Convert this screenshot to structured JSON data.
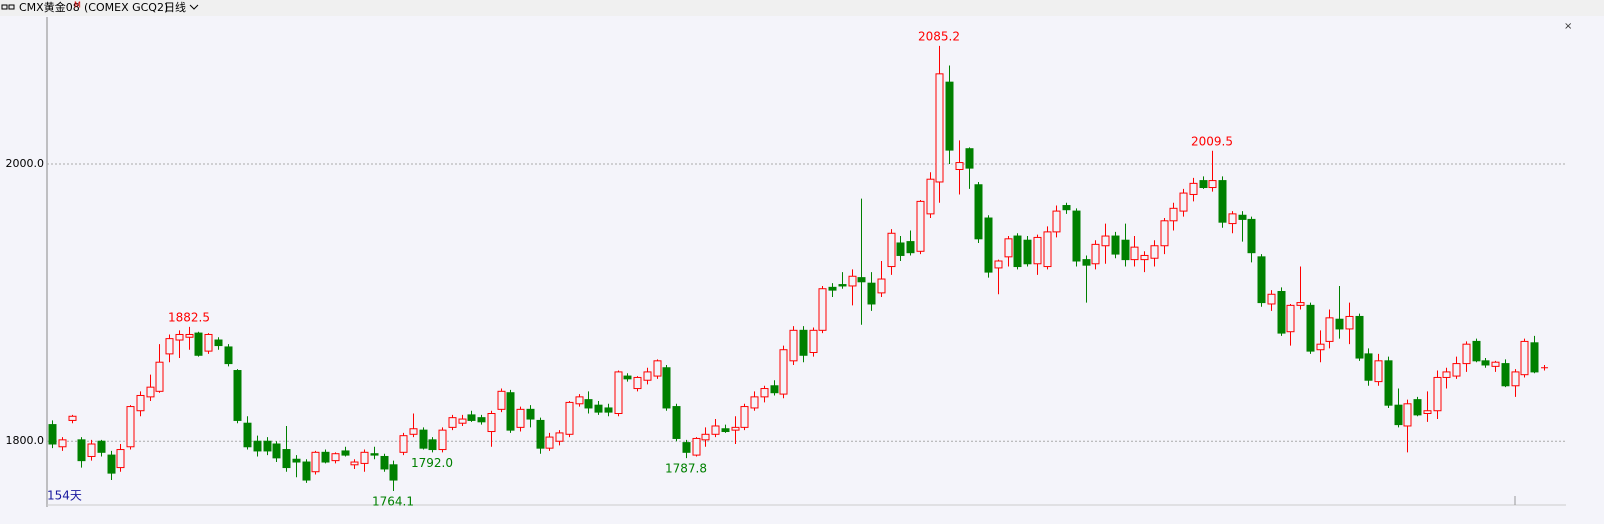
{
  "header": {
    "symbol": "CMX黄金08",
    "superscript": "M",
    "code": "(COMEX GCQ2)",
    "period": "日线"
  },
  "chart_data": {
    "type": "candlestick",
    "ylim": [
      1754,
      2106
    ],
    "yticks": [
      {
        "value": 1800,
        "label": "1800.0"
      },
      {
        "value": 2000,
        "label": "2000.0"
      }
    ],
    "grid": true,
    "up_color": "#ff0000",
    "down_color": "#008000",
    "day_count": "154天",
    "annotations": [
      {
        "value": 1882.5,
        "label": "1882.5"
      },
      {
        "value": 2085.2,
        "label": "2085.2"
      },
      {
        "value": 2009.5,
        "label": "2009.5"
      },
      {
        "value": 1764.1,
        "label": "1764.1"
      },
      {
        "value": 1787.8,
        "label": "1787.8"
      },
      {
        "value": 1792,
        "label": "1792.0"
      }
    ],
    "candles": [
      [
        1812,
        1815,
        1795,
        1798
      ],
      [
        1796,
        1803,
        1793,
        1801
      ],
      [
        1815,
        1819,
        1813,
        1818
      ],
      [
        1801,
        1803,
        1781,
        1786
      ],
      [
        1789,
        1801,
        1786,
        1798
      ],
      [
        1800,
        1801,
        1789,
        1792
      ],
      [
        1790,
        1793,
        1772,
        1777
      ],
      [
        1781,
        1798,
        1778,
        1794
      ],
      [
        1796,
        1826,
        1794,
        1825
      ],
      [
        1822,
        1836,
        1818,
        1833
      ],
      [
        1832,
        1848,
        1829,
        1839
      ],
      [
        1836,
        1870,
        1835,
        1857
      ],
      [
        1863,
        1877,
        1857,
        1874
      ],
      [
        1873,
        1880,
        1860,
        1877
      ],
      [
        1875,
        1882.5,
        1866,
        1877
      ],
      [
        1878,
        1879,
        1861,
        1862
      ],
      [
        1865,
        1878,
        1863,
        1877
      ],
      [
        1873,
        1875,
        1866,
        1869
      ],
      [
        1868,
        1870,
        1854,
        1856
      ],
      [
        1851,
        1852,
        1813,
        1815
      ],
      [
        1813,
        1818,
        1794,
        1796
      ],
      [
        1800,
        1804,
        1789,
        1793
      ],
      [
        1800,
        1803,
        1790,
        1793
      ],
      [
        1798,
        1800,
        1785,
        1788
      ],
      [
        1794,
        1811,
        1778,
        1781
      ],
      [
        1787,
        1790,
        1774,
        1785
      ],
      [
        1785,
        1787,
        1770,
        1772
      ],
      [
        1778,
        1793,
        1776,
        1792
      ],
      [
        1792,
        1794,
        1784,
        1785
      ],
      [
        1786,
        1792,
        1784,
        1791
      ],
      [
        1793,
        1796,
        1789,
        1790
      ],
      [
        1783,
        1787,
        1780,
        1785
      ],
      [
        1784,
        1794,
        1778,
        1792
      ],
      [
        1791,
        1796,
        1787,
        1790
      ],
      [
        1789,
        1791,
        1778,
        1780
      ],
      [
        1783,
        1786,
        1764.1,
        1772
      ],
      [
        1792,
        1806,
        1790,
        1804
      ],
      [
        1805,
        1820,
        1803,
        1809
      ],
      [
        1808,
        1810,
        1794,
        1795
      ],
      [
        1801,
        1803,
        1792,
        1794
      ],
      [
        1794,
        1810,
        1792,
        1808
      ],
      [
        1810,
        1819,
        1808,
        1817
      ],
      [
        1813,
        1819,
        1811,
        1816
      ],
      [
        1819,
        1822,
        1814,
        1815
      ],
      [
        1817,
        1819,
        1812,
        1814
      ],
      [
        1807,
        1822,
        1796,
        1820
      ],
      [
        1823,
        1838,
        1821,
        1836
      ],
      [
        1835,
        1837,
        1806,
        1808
      ],
      [
        1810,
        1825,
        1807,
        1823
      ],
      [
        1823,
        1826,
        1810,
        1816
      ],
      [
        1815,
        1817,
        1791,
        1795
      ],
      [
        1795,
        1806,
        1793,
        1803
      ],
      [
        1800,
        1808,
        1797,
        1806
      ],
      [
        1805,
        1829,
        1803,
        1828
      ],
      [
        1827,
        1834,
        1825,
        1832
      ],
      [
        1830,
        1836,
        1820,
        1824
      ],
      [
        1826,
        1829,
        1819,
        1821
      ],
      [
        1824,
        1827,
        1818,
        1821
      ],
      [
        1820,
        1851,
        1818,
        1850
      ],
      [
        1847,
        1849,
        1843,
        1845
      ],
      [
        1838,
        1847,
        1836,
        1846
      ],
      [
        1844,
        1853,
        1841,
        1850
      ],
      [
        1847,
        1859,
        1845,
        1858
      ],
      [
        1853,
        1855,
        1822,
        1824
      ],
      [
        1825,
        1827,
        1800,
        1802
      ],
      [
        1799,
        1801,
        1787.8,
        1792
      ],
      [
        1790,
        1803,
        1789,
        1802
      ],
      [
        1801,
        1810,
        1796,
        1805
      ],
      [
        1805,
        1816,
        1803,
        1811
      ],
      [
        1809,
        1812,
        1806,
        1807
      ],
      [
        1808,
        1818,
        1798,
        1810
      ],
      [
        1810,
        1827,
        1808,
        1825
      ],
      [
        1824,
        1836,
        1822,
        1832
      ],
      [
        1832,
        1840,
        1828,
        1838
      ],
      [
        1840,
        1844,
        1833,
        1835
      ],
      [
        1834,
        1869,
        1831,
        1866
      ],
      [
        1858,
        1883,
        1855,
        1880
      ],
      [
        1880,
        1883,
        1857,
        1862
      ],
      [
        1864,
        1882,
        1861,
        1880
      ],
      [
        1880,
        1912,
        1878,
        1910
      ],
      [
        1911,
        1914,
        1904,
        1909
      ],
      [
        1913,
        1922,
        1910,
        1912
      ],
      [
        1912,
        1924,
        1898,
        1919
      ],
      [
        1918,
        1975,
        1884,
        1915
      ],
      [
        1914,
        1922,
        1894,
        1899
      ],
      [
        1907,
        1930,
        1904,
        1917
      ],
      [
        1926,
        1953,
        1920,
        1950
      ],
      [
        1943,
        1948,
        1930,
        1934
      ],
      [
        1944,
        1952,
        1934,
        1936
      ],
      [
        1937,
        1974,
        1935,
        1973
      ],
      [
        1964,
        1994,
        1961,
        1989
      ],
      [
        1987,
        2085.2,
        1972,
        2065
      ],
      [
        2059,
        2071,
        2000,
        2010
      ],
      [
        1996,
        2017,
        1978,
        2001
      ],
      [
        2011,
        2012,
        1982,
        1997
      ],
      [
        1985,
        1987,
        1943,
        1946
      ],
      [
        1961,
        1963,
        1918,
        1922
      ],
      [
        1925,
        1931,
        1906,
        1930
      ],
      [
        1933,
        1948,
        1926,
        1946
      ],
      [
        1948,
        1950,
        1924,
        1926
      ],
      [
        1945,
        1948,
        1926,
        1928
      ],
      [
        1928,
        1949,
        1920,
        1947
      ],
      [
        1926,
        1955,
        1924,
        1951
      ],
      [
        1951,
        1970,
        1947,
        1966
      ],
      [
        1970,
        1972,
        1964,
        1967
      ],
      [
        1966,
        1968,
        1926,
        1930
      ],
      [
        1931,
        1934,
        1900,
        1927
      ],
      [
        1928,
        1945,
        1924,
        1942
      ],
      [
        1941,
        1957,
        1928,
        1948
      ],
      [
        1948,
        1951,
        1932,
        1935
      ],
      [
        1945,
        1957,
        1926,
        1931
      ],
      [
        1931,
        1948,
        1926,
        1940
      ],
      [
        1931,
        1937,
        1922,
        1934
      ],
      [
        1932,
        1945,
        1926,
        1941
      ],
      [
        1941,
        1961,
        1935,
        1959
      ],
      [
        1959,
        1972,
        1952,
        1968
      ],
      [
        1966,
        1982,
        1962,
        1979
      ],
      [
        1978,
        1990,
        1973,
        1986
      ],
      [
        1988,
        1991,
        1982,
        1983
      ],
      [
        1983,
        2009.5,
        1980,
        1988
      ],
      [
        1988,
        1991,
        1954,
        1958
      ],
      [
        1957,
        1966,
        1950,
        1964
      ],
      [
        1963,
        1966,
        1944,
        1960
      ],
      [
        1960,
        1962,
        1929,
        1936
      ],
      [
        1933,
        1935,
        1897,
        1900
      ],
      [
        1899,
        1909,
        1894,
        1906
      ],
      [
        1908,
        1911,
        1876,
        1878
      ],
      [
        1879,
        1899,
        1869,
        1898
      ],
      [
        1898,
        1926,
        1895,
        1900
      ],
      [
        1898,
        1900,
        1863,
        1865
      ],
      [
        1866,
        1880,
        1857,
        1870
      ],
      [
        1872,
        1895,
        1867,
        1889
      ],
      [
        1888,
        1912,
        1874,
        1881
      ],
      [
        1881,
        1900,
        1870,
        1890
      ],
      [
        1890,
        1892,
        1858,
        1860
      ],
      [
        1863,
        1867,
        1840,
        1844
      ],
      [
        1843,
        1863,
        1840,
        1858
      ],
      [
        1858,
        1861,
        1824,
        1826
      ],
      [
        1826,
        1838,
        1810,
        1812
      ],
      [
        1811,
        1830,
        1792,
        1827
      ],
      [
        1830,
        1832,
        1818,
        1819
      ],
      [
        1820,
        1836,
        1814,
        1822
      ],
      [
        1822,
        1851,
        1816,
        1846
      ],
      [
        1846,
        1853,
        1838,
        1850
      ],
      [
        1847,
        1861,
        1845,
        1856
      ],
      [
        1856,
        1872,
        1850,
        1870
      ],
      [
        1872,
        1874,
        1857,
        1858
      ],
      [
        1858,
        1860,
        1853,
        1855
      ],
      [
        1854,
        1858,
        1850,
        1857
      ],
      [
        1856,
        1859,
        1839,
        1840
      ],
      [
        1840,
        1852,
        1832,
        1850
      ],
      [
        1848,
        1874,
        1846,
        1872
      ],
      [
        1871,
        1876,
        1849,
        1850
      ],
      [
        1853,
        1855,
        1851,
        1853
      ]
    ]
  }
}
